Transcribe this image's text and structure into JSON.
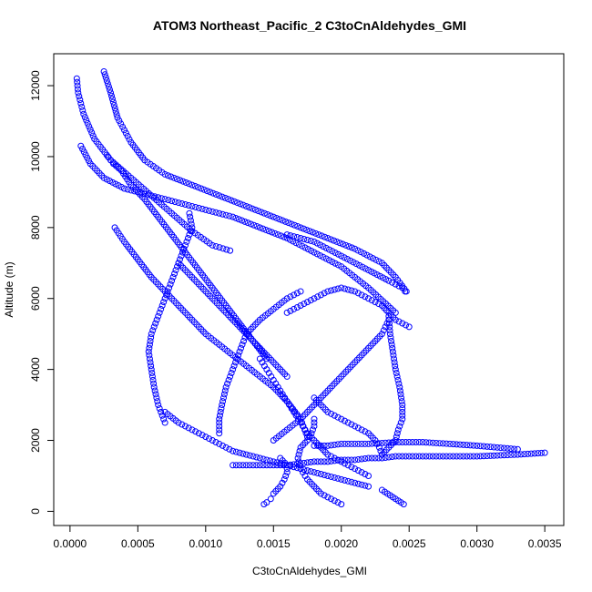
{
  "chart_data": {
    "type": "scatter",
    "title": "ATOM3 Northeast_Pacific_2 C3toCnAldehydes_GMI",
    "xlabel": "C3toCnAldehydes_GMI",
    "ylabel": "Altitude (m)",
    "xlim": [
      -0.00012,
      0.00364
    ],
    "ylim": [
      -400,
      12900
    ],
    "x_ticks": [
      "0.0000",
      "0.0005",
      "0.0010",
      "0.0015",
      "0.0020",
      "0.0025",
      "0.0030",
      "0.0035"
    ],
    "x_tick_values": [
      0,
      0.0005,
      0.001,
      0.0015,
      0.002,
      0.0025,
      0.003,
      0.0035
    ],
    "y_ticks": [
      "0",
      "2000",
      "4000",
      "6000",
      "8000",
      "10000",
      "12000"
    ],
    "y_tick_values": [
      0,
      2000,
      4000,
      6000,
      8000,
      10000,
      12000
    ],
    "marker": "open-circle",
    "color": "#0000ff",
    "grid": false,
    "series": [
      {
        "x": [
          5e-05,
          6e-05,
          0.0001,
          0.00018,
          0.0003,
          0.00045,
          0.0006,
          0.00075,
          0.0009,
          0.00105,
          0.00118
        ],
        "y": [
          12200,
          11800,
          11200,
          10500,
          9900,
          9400,
          8900,
          8400,
          7900,
          7500,
          7350
        ]
      },
      {
        "x": [
          0.00025,
          0.0003,
          0.00035,
          0.00045,
          0.00055,
          0.0007,
          0.0009,
          0.0011,
          0.0013,
          0.0015,
          0.0017,
          0.0019,
          0.0021,
          0.0023,
          0.0024,
          0.00248
        ],
        "y": [
          12400,
          11800,
          11100,
          10400,
          9900,
          9500,
          9200,
          8900,
          8600,
          8300,
          8000,
          7700,
          7400,
          7000,
          6600,
          6200
        ]
      },
      {
        "x": [
          8e-05,
          0.00015,
          0.00025,
          0.0004,
          0.0006,
          0.0008,
          0.001,
          0.0012,
          0.0014,
          0.0016,
          0.0018,
          0.002,
          0.0022,
          0.0024
        ],
        "y": [
          10300,
          9800,
          9400,
          9100,
          8900,
          8700,
          8500,
          8300,
          8000,
          7700,
          7300,
          6900,
          6300,
          5600
        ]
      },
      {
        "x": [
          0.00033,
          0.0004,
          0.0005,
          0.0006,
          0.0007,
          0.0008,
          0.0009,
          0.001,
          0.0011,
          0.0012,
          0.0013,
          0.0014,
          0.0015,
          0.0016,
          0.0017,
          0.00175
        ],
        "y": [
          8000,
          7600,
          7100,
          6600,
          6200,
          5800,
          5400,
          5000,
          4700,
          4400,
          4100,
          3800,
          3500,
          3100,
          2600,
          2100
        ]
      },
      {
        "x": [
          0.00088,
          0.0009,
          0.00085,
          0.0008,
          0.00075,
          0.0007,
          0.00065,
          0.0006,
          0.00058,
          0.0006,
          0.00062,
          0.00065,
          0.0007
        ],
        "y": [
          8400,
          8000,
          7500,
          7000,
          6500,
          6000,
          5500,
          5000,
          4500,
          4000,
          3500,
          3000,
          2500
        ]
      },
      {
        "x": [
          0.0007,
          0.0008,
          0.0009,
          0.001,
          0.0011,
          0.0012,
          0.0013,
          0.0014,
          0.0015,
          0.0016,
          0.0017,
          0.0018,
          0.0019,
          0.002,
          0.0021,
          0.0022
        ],
        "y": [
          2800,
          2500,
          2300,
          2100,
          1900,
          1700,
          1600,
          1500,
          1400,
          1300,
          1200,
          1100,
          1000,
          900,
          800,
          700
        ]
      },
      {
        "x": [
          0.00155,
          0.0016,
          0.0016,
          0.00158,
          0.00155,
          0.0015,
          0.00148,
          0.00145,
          0.00143
        ],
        "y": [
          1500,
          1300,
          1100,
          900,
          700,
          500,
          350,
          250,
          200
        ]
      },
      {
        "x": [
          0.0018,
          0.0018,
          0.00178,
          0.00175,
          0.0017,
          0.00168,
          0.0017,
          0.00175,
          0.0018,
          0.00185,
          0.0019,
          0.00195,
          0.002
        ],
        "y": [
          2600,
          2400,
          2200,
          2000,
          1800,
          1500,
          1200,
          900,
          700,
          500,
          400,
          300,
          200
        ]
      },
      {
        "x": [
          0.0023,
          0.00235,
          0.0024,
          0.00242,
          0.00245,
          0.00245,
          0.00243,
          0.0024,
          0.00238,
          0.00236,
          0.00235
        ],
        "y": [
          1600,
          1800,
          2000,
          2300,
          2600,
          3000,
          3500,
          4000,
          4500,
          5000,
          5500
        ]
      },
      {
        "x": [
          0.00028,
          0.00032,
          0.00038,
          0.00045,
          0.00055,
          0.00065,
          0.00075,
          0.00085,
          0.00095,
          0.00105,
          0.00115,
          0.00125,
          0.00135,
          0.00145
        ],
        "y": [
          10000,
          9800,
          9600,
          9200,
          8800,
          8300,
          7800,
          7300,
          6800,
          6300,
          5800,
          5300,
          4800,
          4300
        ]
      },
      {
        "x": [
          0.0014,
          0.00145,
          0.0015,
          0.00155,
          0.0016,
          0.00165,
          0.0017,
          0.00175,
          0.0018,
          0.00185,
          0.0019,
          0.002,
          0.0021,
          0.0022
        ],
        "y": [
          4300,
          4000,
          3700,
          3400,
          3100,
          2800,
          2500,
          2200,
          2000,
          1800,
          1600,
          1400,
          1200,
          1000
        ]
      },
      {
        "x": [
          0.0012,
          0.0013,
          0.0014,
          0.0015,
          0.0016,
          0.0017,
          0.0018,
          0.0019,
          0.002,
          0.0021,
          0.0022,
          0.0023,
          0.0024,
          0.0025,
          0.0028,
          0.003,
          0.0033,
          0.0035
        ],
        "y": [
          1300,
          1300,
          1300,
          1300,
          1300,
          1350,
          1400,
          1400,
          1450,
          1450,
          1500,
          1500,
          1550,
          1550,
          1550,
          1550,
          1600,
          1650
        ]
      },
      {
        "x": [
          0.0018,
          0.0019,
          0.002,
          0.0022,
          0.0024,
          0.0026,
          0.0028,
          0.003,
          0.0033
        ],
        "y": [
          1850,
          1850,
          1900,
          1900,
          1950,
          1950,
          1900,
          1850,
          1750
        ]
      },
      {
        "x": [
          0.0016,
          0.0017,
          0.0018,
          0.0019,
          0.002,
          0.0021,
          0.0022,
          0.0023,
          0.00235,
          0.0024,
          0.0025
        ],
        "y": [
          5600,
          5800,
          6000,
          6200,
          6300,
          6200,
          6000,
          5800,
          5600,
          5400,
          5200
        ]
      },
      {
        "x": [
          0.0015,
          0.0016,
          0.0017,
          0.0018,
          0.0019,
          0.002,
          0.0021,
          0.0022,
          0.0023,
          0.00235
        ],
        "y": [
          2000,
          2300,
          2600,
          3000,
          3400,
          3800,
          4200,
          4600,
          5000,
          5400
        ]
      },
      {
        "x": [
          0.0011,
          0.0011,
          0.00112,
          0.00115,
          0.0012,
          0.00125,
          0.0013,
          0.0014,
          0.0015,
          0.0016,
          0.0017
        ],
        "y": [
          2200,
          2600,
          3000,
          3500,
          4000,
          4500,
          5000,
          5400,
          5700,
          6000,
          6200
        ]
      },
      {
        "x": [
          0.0023,
          0.00232,
          0.00234,
          0.00236,
          0.00238,
          0.0024,
          0.00242,
          0.00244,
          0.00246
        ],
        "y": [
          600,
          550,
          500,
          450,
          400,
          350,
          300,
          250,
          200
        ]
      },
      {
        "x": [
          0.0016,
          0.0018,
          0.002,
          0.0022,
          0.00235,
          0.00245,
          0.00247
        ],
        "y": [
          7800,
          7600,
          7200,
          6800,
          6500,
          6300,
          6200
        ]
      },
      {
        "x": [
          0.0008,
          0.0009,
          0.001,
          0.0011,
          0.0012,
          0.0013,
          0.0014,
          0.0015,
          0.0016
        ],
        "y": [
          7000,
          6600,
          6200,
          5800,
          5400,
          5000,
          4600,
          4200,
          3800
        ]
      },
      {
        "x": [
          0.0018,
          0.00185,
          0.0019,
          0.002,
          0.0021,
          0.0022,
          0.00225,
          0.00228,
          0.0023
        ],
        "y": [
          3200,
          3000,
          2800,
          2600,
          2400,
          2200,
          2000,
          1800,
          1600
        ]
      }
    ]
  }
}
